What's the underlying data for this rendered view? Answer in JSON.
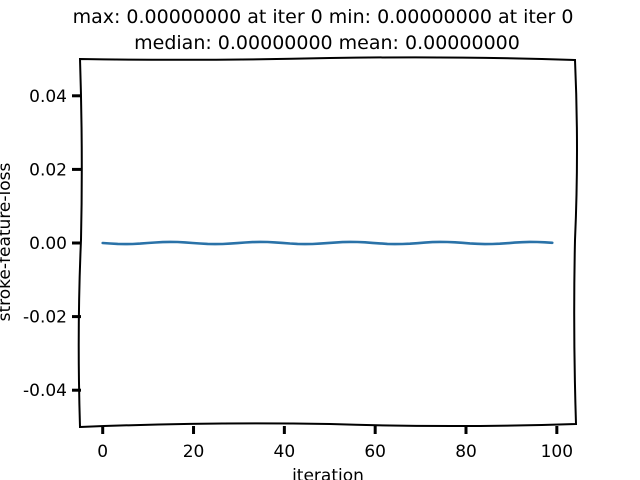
{
  "chart_data": {
    "type": "line",
    "title_line1": "max: 0.00000000 at iter 0 min: 0.00000000 at iter 0",
    "title_line2": "median: 0.00000000 mean: 0.00000000",
    "xlabel": "iteration",
    "ylabel": "stroke-feature-loss",
    "xlim": [
      -5,
      104
    ],
    "ylim": [
      -0.05,
      0.05
    ],
    "xticks": [
      0,
      20,
      40,
      60,
      80,
      100
    ],
    "xtick_labels": [
      "0",
      "20",
      "40",
      "60",
      "80",
      "100"
    ],
    "yticks": [
      0.04,
      0.02,
      0.0,
      -0.02,
      -0.04
    ],
    "ytick_labels": [
      "0.04",
      "0.02",
      "0.00",
      "-0.02",
      "-0.04"
    ],
    "grid": false,
    "series": [
      {
        "x_start": 0,
        "x_end": 99,
        "constant_value": 0.0,
        "color": "#2a72a8"
      }
    ]
  }
}
